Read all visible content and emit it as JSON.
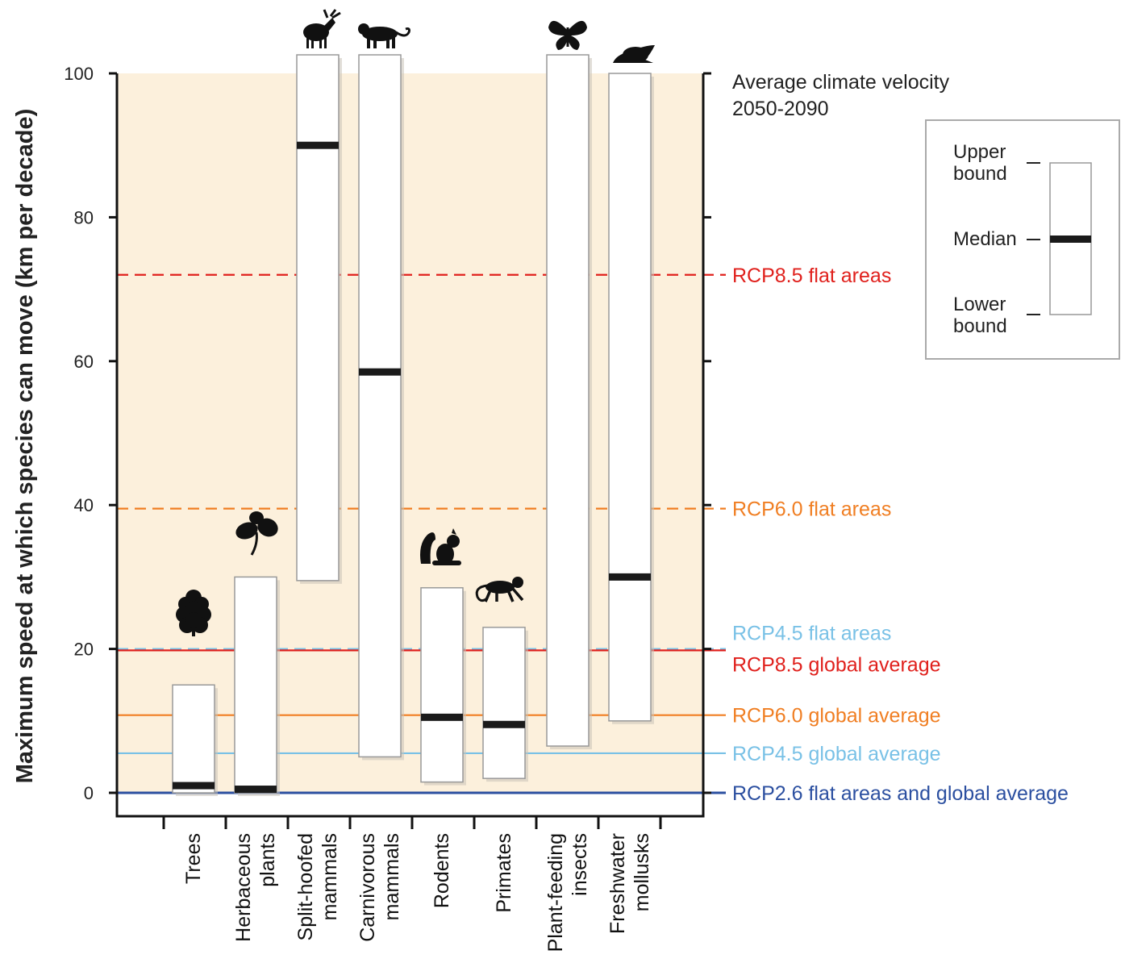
{
  "chart_data": {
    "type": "box-range",
    "ylabel": "Maximum speed at which species can move (km per decade)",
    "ylim": [
      0,
      100
    ],
    "yticks": [
      0,
      20,
      40,
      60,
      80,
      100
    ],
    "grid": false,
    "categories": [
      {
        "lines": [
          "Trees"
        ]
      },
      {
        "lines": [
          "Herbaceous",
          "plants"
        ]
      },
      {
        "lines": [
          "Split-hoofed",
          "mammals"
        ]
      },
      {
        "lines": [
          "Carnivorous",
          "mammals"
        ]
      },
      {
        "lines": [
          "Rodents"
        ]
      },
      {
        "lines": [
          "Primates"
        ]
      },
      {
        "lines": [
          "Plant-feeding",
          "insects"
        ]
      },
      {
        "lines": [
          "Freshwater",
          "mollusks"
        ]
      }
    ],
    "ranges": [
      {
        "lower": 0,
        "median": 1,
        "upper": 15,
        "icon": "tree-icon"
      },
      {
        "lower": 0,
        "median": 0.5,
        "upper": 30,
        "icon": "leaf-icon"
      },
      {
        "lower": 29.5,
        "median": 90,
        "upper": 100,
        "icon": "moose-icon"
      },
      {
        "lower": 5,
        "median": 58.5,
        "upper": 100,
        "icon": "big-cat-icon"
      },
      {
        "lower": 1.5,
        "median": 10.5,
        "upper": 28.5,
        "icon": "squirrel-icon"
      },
      {
        "lower": 2,
        "median": 9.5,
        "upper": 23,
        "icon": "monkey-icon"
      },
      {
        "lower": 6.5,
        "median": null,
        "upper": 100,
        "icon": "butterfly-icon"
      },
      {
        "lower": 10,
        "median": 30,
        "upper": 100,
        "icon": "snail-icon"
      }
    ],
    "right_title": [
      "Average climate velocity",
      "2050-2090"
    ],
    "reference_lines": [
      {
        "label": "RCP8.5 flat areas",
        "value": 72,
        "style": "dashed",
        "color": "#e0201c"
      },
      {
        "label": "RCP6.0 flat areas",
        "value": 39.5,
        "style": "dashed",
        "color": "#f07e22"
      },
      {
        "label": "RCP4.5 flat areas",
        "value": 20,
        "style": "dashed",
        "color": "#79c1e6"
      },
      {
        "label": "RCP8.5 global average",
        "value": 19.8,
        "style": "solid",
        "color": "#e0201c"
      },
      {
        "label": "RCP6.0 global average",
        "value": 10.8,
        "style": "solid",
        "color": "#f07e22"
      },
      {
        "label": "RCP4.5 global average",
        "value": 5.5,
        "style": "solid",
        "color": "#79c1e6"
      },
      {
        "label": "RCP2.6  flat areas and global average",
        "value": 0,
        "style": "solid",
        "color": "#2b4fa0"
      }
    ],
    "legend": {
      "upper": [
        "Upper",
        "bound"
      ],
      "median": "Median",
      "lower": [
        "Lower",
        "bound"
      ]
    },
    "colors": {
      "plot_background": "#fcf0dc",
      "box_fill": "#ffffff",
      "box_stroke": "#999999",
      "median": "#1a1a1a",
      "axis": "#111111",
      "icon": "#111111"
    }
  }
}
